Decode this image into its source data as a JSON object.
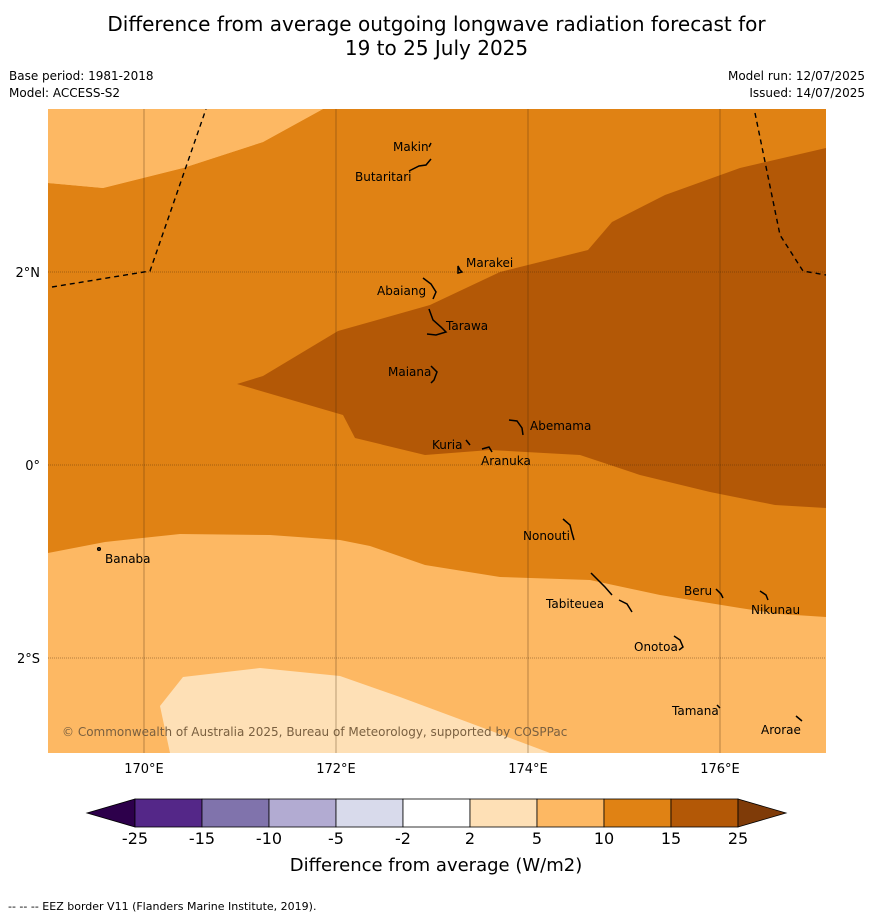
{
  "title_line1": "Difference from average outgoing longwave radiation forecast for",
  "title_line2": "19 to 25 July 2025",
  "base_period": "Base period: 1981-2018",
  "model": "Model: ACCESS-S2",
  "model_run": "Model run: 12/07/2025",
  "issued": "Issued: 14/07/2025",
  "lat_labels": [
    "2°N",
    "0°",
    "2°S"
  ],
  "lon_labels": [
    "170°E",
    "172°E",
    "174°E",
    "176°E"
  ],
  "places": [
    "Makin",
    "Butaritari",
    "Marakei",
    "Abaiang",
    "Tarawa",
    "Maiana",
    "Abemama",
    "Kuria",
    "Aranuka",
    "Nonouti",
    "Banaba",
    "Beru",
    "Nikunau",
    "Tabiteuea",
    "Onotoa",
    "Tamana",
    "Arorae"
  ],
  "copyright": "© Commonwealth of Australia 2025, Bureau of Meteorology, supported by COSPPac",
  "colorbar": {
    "ticks": [
      "-25",
      "-15",
      "-10",
      "-5",
      "-2",
      "2",
      "5",
      "10",
      "15",
      "25"
    ],
    "colors": [
      "#2d004b",
      "#542788",
      "#8073ac",
      "#b2abd2",
      "#d8daeb",
      "#ffffff",
      "#fee0b6",
      "#fdb863",
      "#e08214",
      "#b35806",
      "#7f3b08"
    ],
    "label": "Difference from average (W/m2)"
  },
  "footnote": "-- -- -- EEZ border V11 (Flanders Marine Institute, 2019).",
  "map_colors": {
    "level_2_5": "#fee0b6",
    "level_5_10": "#fdb863",
    "level_10_15": "#e08214",
    "level_15_25": "#b35806"
  }
}
